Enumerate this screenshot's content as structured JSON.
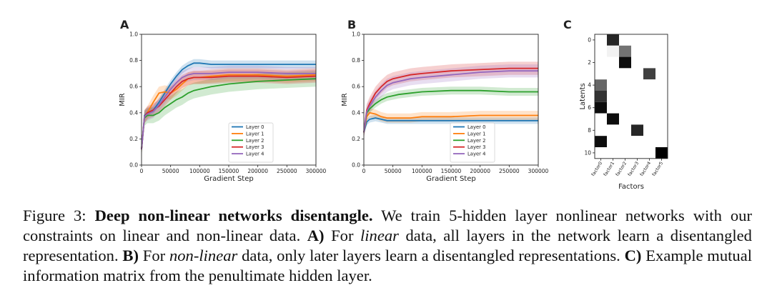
{
  "panels": [
    {
      "label": "A",
      "chart_data": {
        "type": "line",
        "xlabel": "Gradient Step",
        "ylabel": "MIR",
        "xlim": [
          0,
          300000
        ],
        "ylim": [
          0.0,
          1.0
        ],
        "xticks": [
          0,
          50000,
          100000,
          150000,
          200000,
          250000,
          300000
        ],
        "yticks": [
          0.0,
          0.2,
          0.4,
          0.6,
          0.8,
          1.0
        ],
        "legend": "lower-center",
        "grid": false,
        "series": [
          {
            "name": "Layer 0",
            "color": "#1f77b4",
            "x": [
              0,
              5000,
              10000,
              20000,
              30000,
              40000,
              50000,
              60000,
              70000,
              80000,
              90000,
              100000,
              120000,
              150000,
              200000,
              250000,
              300000
            ],
            "y": [
              0.12,
              0.38,
              0.4,
              0.42,
              0.48,
              0.55,
              0.62,
              0.68,
              0.73,
              0.76,
              0.78,
              0.78,
              0.77,
              0.77,
              0.77,
              0.77,
              0.77
            ],
            "band": 0.03
          },
          {
            "name": "Layer 1",
            "color": "#ff7f0e",
            "x": [
              0,
              5000,
              10000,
              20000,
              30000,
              40000,
              50000,
              60000,
              70000,
              80000,
              90000,
              100000,
              120000,
              150000,
              200000,
              250000,
              300000
            ],
            "y": [
              0.12,
              0.37,
              0.4,
              0.48,
              0.55,
              0.56,
              0.55,
              0.58,
              0.62,
              0.66,
              0.67,
              0.67,
              0.68,
              0.69,
              0.69,
              0.68,
              0.69
            ],
            "band": 0.05
          },
          {
            "name": "Layer 2",
            "color": "#2ca02c",
            "x": [
              0,
              5000,
              10000,
              20000,
              30000,
              40000,
              50000,
              60000,
              70000,
              80000,
              90000,
              100000,
              120000,
              150000,
              200000,
              250000,
              300000
            ],
            "y": [
              0.12,
              0.36,
              0.38,
              0.38,
              0.4,
              0.44,
              0.47,
              0.5,
              0.52,
              0.55,
              0.57,
              0.58,
              0.6,
              0.62,
              0.64,
              0.65,
              0.66
            ],
            "band": 0.06
          },
          {
            "name": "Layer 3",
            "color": "#d62728",
            "x": [
              0,
              5000,
              10000,
              20000,
              30000,
              40000,
              50000,
              60000,
              70000,
              80000,
              90000,
              100000,
              120000,
              150000,
              200000,
              250000,
              300000
            ],
            "y": [
              0.12,
              0.37,
              0.4,
              0.42,
              0.45,
              0.5,
              0.55,
              0.6,
              0.64,
              0.66,
              0.67,
              0.67,
              0.67,
              0.68,
              0.68,
              0.67,
              0.68
            ],
            "band": 0.05
          },
          {
            "name": "Layer 4",
            "color": "#9467bd",
            "x": [
              0,
              5000,
              10000,
              20000,
              30000,
              40000,
              50000,
              60000,
              70000,
              80000,
              90000,
              100000,
              120000,
              150000,
              200000,
              250000,
              300000
            ],
            "y": [
              0.12,
              0.37,
              0.39,
              0.41,
              0.46,
              0.52,
              0.58,
              0.63,
              0.67,
              0.69,
              0.7,
              0.7,
              0.7,
              0.71,
              0.71,
              0.7,
              0.7
            ],
            "band": 0.05
          }
        ]
      }
    },
    {
      "label": "B",
      "chart_data": {
        "type": "line",
        "xlabel": "Gradient Step",
        "ylabel": "MIR",
        "xlim": [
          0,
          300000
        ],
        "ylim": [
          0.0,
          1.0
        ],
        "xticks": [
          0,
          50000,
          100000,
          150000,
          200000,
          250000,
          300000
        ],
        "yticks": [
          0.0,
          0.2,
          0.4,
          0.6,
          0.8,
          1.0
        ],
        "legend": "lower-right",
        "grid": false,
        "series": [
          {
            "name": "Layer 0",
            "color": "#1f77b4",
            "x": [
              0,
              5000,
              10000,
              20000,
              30000,
              40000,
              50000,
              60000,
              80000,
              100000,
              150000,
              200000,
              250000,
              300000
            ],
            "y": [
              0.25,
              0.33,
              0.35,
              0.36,
              0.35,
              0.34,
              0.34,
              0.34,
              0.34,
              0.34,
              0.34,
              0.34,
              0.34,
              0.34
            ],
            "band": 0.025
          },
          {
            "name": "Layer 1",
            "color": "#ff7f0e",
            "x": [
              0,
              5000,
              10000,
              20000,
              30000,
              40000,
              50000,
              60000,
              80000,
              100000,
              150000,
              200000,
              250000,
              300000
            ],
            "y": [
              0.25,
              0.37,
              0.4,
              0.39,
              0.37,
              0.36,
              0.36,
              0.36,
              0.36,
              0.37,
              0.37,
              0.38,
              0.38,
              0.38
            ],
            "band": 0.035
          },
          {
            "name": "Layer 2",
            "color": "#2ca02c",
            "x": [
              0,
              5000,
              10000,
              20000,
              30000,
              40000,
              50000,
              60000,
              80000,
              100000,
              150000,
              200000,
              250000,
              300000
            ],
            "y": [
              0.25,
              0.4,
              0.43,
              0.47,
              0.5,
              0.52,
              0.53,
              0.54,
              0.55,
              0.56,
              0.57,
              0.57,
              0.56,
              0.56
            ],
            "band": 0.03
          },
          {
            "name": "Layer 3",
            "color": "#d62728",
            "x": [
              0,
              5000,
              10000,
              20000,
              30000,
              40000,
              50000,
              60000,
              80000,
              100000,
              150000,
              200000,
              250000,
              300000
            ],
            "y": [
              0.25,
              0.42,
              0.47,
              0.55,
              0.6,
              0.64,
              0.66,
              0.67,
              0.69,
              0.7,
              0.72,
              0.73,
              0.74,
              0.74
            ],
            "band": 0.05
          },
          {
            "name": "Layer 4",
            "color": "#9467bd",
            "x": [
              0,
              5000,
              10000,
              20000,
              30000,
              40000,
              50000,
              60000,
              80000,
              100000,
              150000,
              200000,
              250000,
              300000
            ],
            "y": [
              0.25,
              0.41,
              0.45,
              0.52,
              0.57,
              0.61,
              0.63,
              0.64,
              0.66,
              0.67,
              0.69,
              0.71,
              0.72,
              0.72
            ],
            "band": 0.05
          }
        ]
      }
    },
    {
      "label": "C",
      "chart_data": {
        "type": "heatmap",
        "xlabel": "Factors",
        "ylabel": "Latents",
        "x_categories": [
          "factor0",
          "factor1",
          "factor2",
          "factor3",
          "factor4",
          "factor5"
        ],
        "yticks": [
          0,
          2,
          4,
          6,
          8,
          10
        ],
        "n_rows": 11,
        "values": [
          [
            0.0,
            0.85,
            0.0,
            0.0,
            0.0,
            0.0
          ],
          [
            0.0,
            0.05,
            0.55,
            0.0,
            0.0,
            0.0
          ],
          [
            0.0,
            0.0,
            0.95,
            0.0,
            0.0,
            0.0
          ],
          [
            0.0,
            0.0,
            0.0,
            0.0,
            0.75,
            0.0
          ],
          [
            0.6,
            0.0,
            0.0,
            0.0,
            0.0,
            0.0
          ],
          [
            0.8,
            0.0,
            0.0,
            0.0,
            0.0,
            0.0
          ],
          [
            0.95,
            0.0,
            0.0,
            0.0,
            0.0,
            0.0
          ],
          [
            0.0,
            0.95,
            0.0,
            0.0,
            0.0,
            0.0
          ],
          [
            0.0,
            0.0,
            0.0,
            0.85,
            0.0,
            0.0
          ],
          [
            0.95,
            0.0,
            0.0,
            0.0,
            0.0,
            0.0
          ],
          [
            0.0,
            0.0,
            0.0,
            0.0,
            0.0,
            1.0
          ]
        ]
      }
    }
  ],
  "caption": {
    "prefix": "Figure 3:",
    "title": "Deep non-linear networks disentangle.",
    "text1": "We train 5-hidden layer nonlinear networks with our constraints on linear and non-linear data.",
    "label_a": "A)",
    "text_a1": "For",
    "emph_a": "linear",
    "text_a2": "data, all layers in the network learn a disentangled representation.",
    "label_b": "B)",
    "text_b1": "For",
    "emph_b": "non-linear",
    "text_b2": "data, only later layers learn a disentangled representations.",
    "label_c": "C)",
    "text_c": "Example mutual information matrix from the penultimate hidden layer."
  }
}
